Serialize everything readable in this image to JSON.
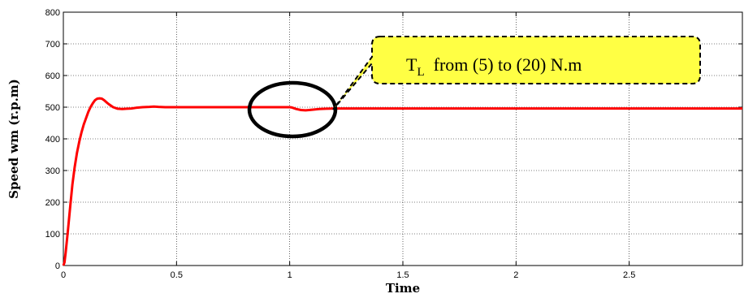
{
  "chart_data": {
    "type": "line",
    "title": "",
    "xlabel": "Time",
    "ylabel": "Speed wm (r.p.m)",
    "xlim": [
      0,
      3
    ],
    "ylim": [
      0,
      800
    ],
    "grid": true,
    "x_ticks": [
      "0",
      "0.5",
      "1",
      "1.5",
      "2",
      "2.5"
    ],
    "y_ticks": [
      "0",
      "100",
      "200",
      "300",
      "400",
      "500",
      "600",
      "700",
      "800"
    ],
    "series": [
      {
        "color": "#ff0000",
        "x": [
          0,
          0.005,
          0.01,
          0.02,
          0.03,
          0.04,
          0.05,
          0.06,
          0.07,
          0.08,
          0.09,
          0.1,
          0.11,
          0.12,
          0.13,
          0.14,
          0.15,
          0.16,
          0.17,
          0.18,
          0.19,
          0.2,
          0.22,
          0.24,
          0.26,
          0.28,
          0.3,
          0.32,
          0.35,
          0.38,
          0.4,
          0.42,
          0.45,
          0.5,
          0.6,
          0.7,
          0.8,
          0.9,
          1.0,
          1.01,
          1.03,
          1.05,
          1.07,
          1.1,
          1.13,
          1.16,
          1.2,
          1.3,
          1.5,
          2.0,
          2.5,
          3.0
        ],
        "y": [
          0,
          10,
          40,
          110,
          185,
          255,
          310,
          355,
          390,
          420,
          445,
          465,
          485,
          500,
          512,
          522,
          527,
          528,
          527,
          522,
          516,
          510,
          500,
          495,
          494,
          495,
          496,
          498,
          500,
          501,
          502,
          501,
          500,
          500,
          500,
          500,
          500,
          500,
          500,
          499,
          494,
          491,
          490,
          492,
          494,
          495,
          496,
          496,
          496,
          496,
          496,
          496
        ]
      }
    ],
    "annotation": {
      "text_main": "T",
      "text_sub": "L",
      "text_rest": "  from (5) to (20) N.m",
      "box_fill": "#ffff44",
      "box_stroke": "#000000",
      "marker": "ellipse around t=1 disturbance"
    }
  }
}
